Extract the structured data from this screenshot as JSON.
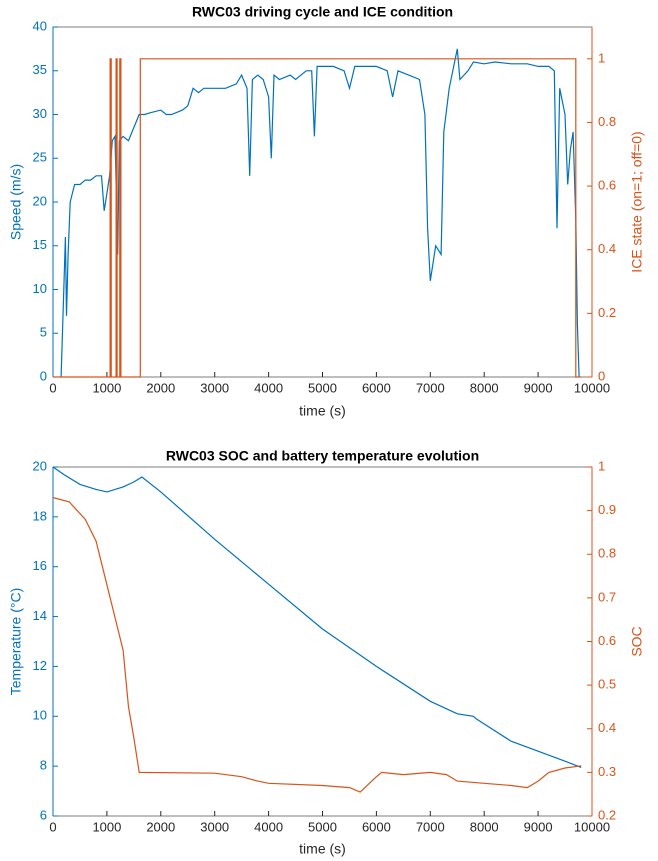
{
  "chart_data": [
    {
      "type": "line",
      "title": "RWC03 driving cycle and ICE condition",
      "x_label": "time (s)",
      "y_label": "Speed (m/s)",
      "y2_label": "ICE state (on=1; off=0)",
      "xlim": [
        0,
        10000
      ],
      "xticks": [
        0,
        1000,
        2000,
        3000,
        4000,
        5000,
        6000,
        7000,
        8000,
        9000,
        10000
      ],
      "ylim": [
        0,
        40
      ],
      "yticks": [
        0,
        5,
        10,
        15,
        20,
        25,
        30,
        35,
        40
      ],
      "y2lim": [
        0,
        1.1
      ],
      "y2ticks": [
        0,
        0.2,
        0.4,
        0.6,
        0.8,
        1
      ],
      "series": [
        {
          "color": "#0072BD",
          "x": [
            150,
            200,
            230,
            250,
            280,
            320,
            400,
            500,
            600,
            700,
            800,
            900,
            950,
            1000,
            1050,
            1100,
            1150,
            1200,
            1230,
            1300,
            1400,
            1500,
            1600,
            1700,
            1800,
            2000,
            2100,
            2200,
            2400,
            2500,
            2600,
            2700,
            2800,
            3000,
            3200,
            3400,
            3500,
            3600,
            3650,
            3700,
            3800,
            3900,
            4000,
            4050,
            4100,
            4200,
            4400,
            4500,
            4600,
            4700,
            4800,
            4850,
            4900,
            5000,
            5200,
            5400,
            5500,
            5600,
            5800,
            6000,
            6200,
            6300,
            6400,
            6600,
            6800,
            6900,
            6950,
            7000,
            7100,
            7200,
            7250,
            7350,
            7500,
            7550,
            7700,
            7800,
            8000,
            8200,
            8500,
            8800,
            9000,
            9200,
            9300,
            9350,
            9400,
            9500,
            9550,
            9600,
            9650,
            9700,
            9730,
            9760
          ],
          "values": [
            0,
            10,
            16,
            7,
            14,
            20,
            22,
            22,
            22.5,
            22.5,
            23,
            23,
            19,
            21,
            23,
            27,
            27.5,
            14,
            27,
            27.5,
            27,
            28.5,
            30,
            30,
            30.2,
            30.5,
            30,
            30,
            30.5,
            31,
            33,
            32.5,
            33,
            33,
            33,
            33.5,
            34.5,
            33,
            23,
            34,
            34.5,
            34,
            32,
            25,
            34.5,
            34,
            34.5,
            34,
            34.5,
            35,
            35,
            27.5,
            35.5,
            35.5,
            35.5,
            35,
            33,
            35.5,
            35.5,
            35.5,
            35,
            32,
            35,
            34.5,
            34,
            30,
            17,
            11,
            15,
            14,
            28,
            33,
            37.5,
            34,
            35,
            36,
            35.8,
            36,
            35.8,
            35.8,
            35.5,
            35.5,
            35,
            17,
            33,
            30,
            22,
            26,
            28,
            18,
            6,
            0
          ]
        },
        {
          "color": "#D95319",
          "axis": "y2",
          "x": [
            0,
            1060,
            1060,
            1080,
            1080,
            1170,
            1170,
            1190,
            1190,
            1240,
            1240,
            1260,
            1260,
            1620,
            1620,
            9700,
            9700,
            9800
          ],
          "values": [
            0,
            0,
            1,
            1,
            0,
            0,
            1,
            1,
            0,
            0,
            1,
            1,
            0,
            0,
            1,
            1,
            0,
            0
          ]
        }
      ]
    },
    {
      "type": "line",
      "title": "RWC03 SOC and battery temperature evolution",
      "x_label": "time (s)",
      "y_label": "Temperature (°C)",
      "y2_label": "SOC",
      "xlim": [
        0,
        10000
      ],
      "xticks": [
        0,
        1000,
        2000,
        3000,
        4000,
        5000,
        6000,
        7000,
        8000,
        9000,
        10000
      ],
      "ylim": [
        6,
        20
      ],
      "yticks": [
        6,
        8,
        10,
        12,
        14,
        16,
        18,
        20
      ],
      "y2lim": [
        0.2,
        1
      ],
      "y2ticks": [
        0.2,
        0.3,
        0.4,
        0.5,
        0.6,
        0.7,
        0.8,
        0.9,
        1
      ],
      "series": [
        {
          "color": "#0072BD",
          "x": [
            0,
            200,
            500,
            800,
            1000,
            1300,
            1500,
            1650,
            2000,
            3000,
            4000,
            5000,
            6000,
            7000,
            7500,
            7800,
            7850,
            8500,
            9000,
            9500,
            9800
          ],
          "values": [
            20,
            19.7,
            19.3,
            19.1,
            19.0,
            19.2,
            19.4,
            19.6,
            19.0,
            17.1,
            15.3,
            13.5,
            12.0,
            10.6,
            10.1,
            10.0,
            9.9,
            9.0,
            8.6,
            8.2,
            7.95
          ]
        },
        {
          "color": "#D95319",
          "axis": "y2",
          "x": [
            0,
            300,
            600,
            800,
            1000,
            1200,
            1300,
            1400,
            1500,
            1600,
            3000,
            3500,
            3800,
            4000,
            5000,
            5500,
            5700,
            6000,
            6100,
            6500,
            7000,
            7300,
            7500,
            8000,
            8500,
            8800,
            9000,
            9200,
            9500,
            9800
          ],
          "values": [
            0.93,
            0.92,
            0.88,
            0.83,
            0.73,
            0.63,
            0.58,
            0.45,
            0.38,
            0.3,
            0.298,
            0.29,
            0.28,
            0.275,
            0.27,
            0.265,
            0.255,
            0.29,
            0.3,
            0.295,
            0.3,
            0.295,
            0.28,
            0.275,
            0.27,
            0.265,
            0.28,
            0.3,
            0.31,
            0.315
          ]
        }
      ]
    }
  ]
}
